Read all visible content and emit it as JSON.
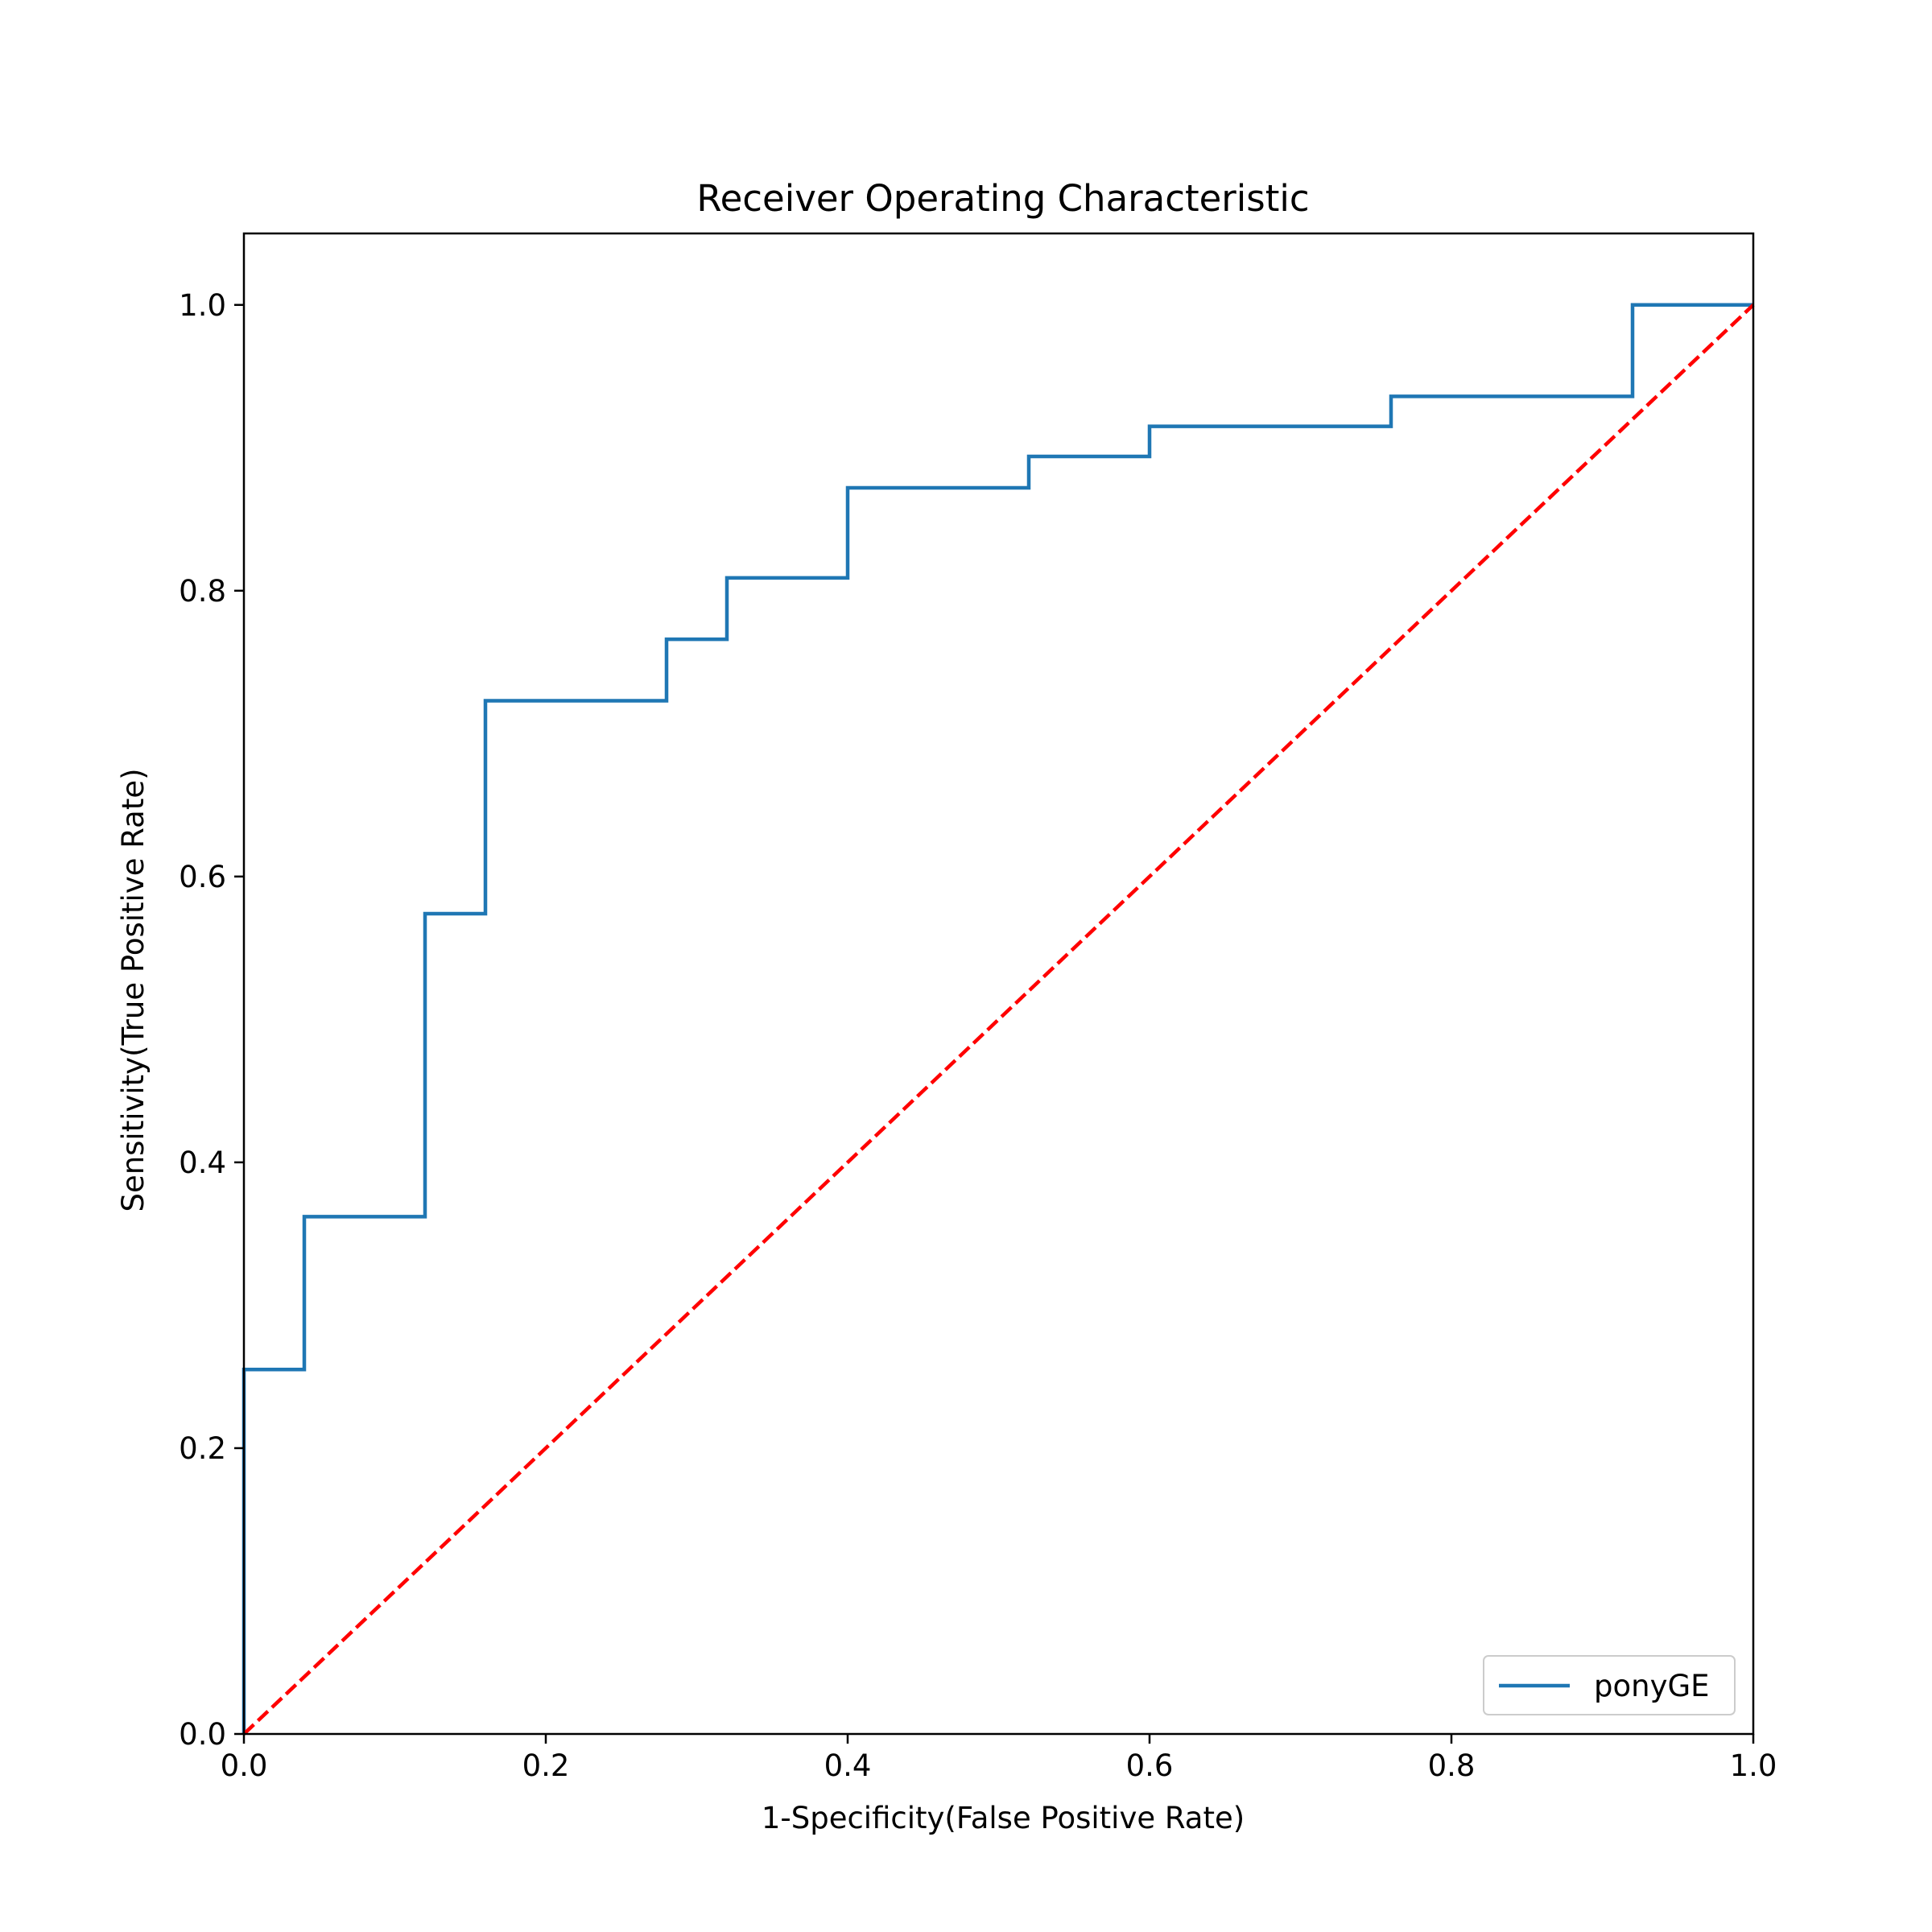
{
  "chart_data": {
    "type": "line",
    "title": "Receiver Operating Characteristic",
    "xlabel": "1-Specificity(False Positive Rate)",
    "ylabel": "Sensitivity(True Positive Rate)",
    "xlim": [
      0.0,
      1.0
    ],
    "ylim": [
      0.0,
      1.05
    ],
    "x_ticks": [
      0.0,
      0.2,
      0.4,
      0.6,
      0.8,
      1.0
    ],
    "y_ticks": [
      0.0,
      0.2,
      0.4,
      0.6,
      0.8,
      1.0
    ],
    "x_tick_labels": [
      "0.0",
      "0.2",
      "0.4",
      "0.6",
      "0.8",
      "1.0"
    ],
    "y_tick_labels": [
      "0.0",
      "0.2",
      "0.4",
      "0.6",
      "0.8",
      "1.0"
    ],
    "grid": false,
    "legend_position": "bottom-right",
    "series": [
      {
        "name": "ponyGE",
        "color": "#1f77b4",
        "style": "solid",
        "step": true,
        "x": [
          0.0,
          0.0,
          0.04,
          0.04,
          0.12,
          0.12,
          0.16,
          0.16,
          0.28,
          0.28,
          0.32,
          0.32,
          0.4,
          0.4,
          0.52,
          0.52,
          0.6,
          0.6,
          0.76,
          0.76,
          0.92,
          0.92,
          1.0
        ],
        "y": [
          0.0,
          0.255,
          0.255,
          0.362,
          0.362,
          0.574,
          0.574,
          0.723,
          0.723,
          0.766,
          0.766,
          0.809,
          0.809,
          0.872,
          0.872,
          0.894,
          0.894,
          0.915,
          0.915,
          0.936,
          0.936,
          1.0,
          1.0
        ]
      },
      {
        "color": "#ff0000",
        "style": "dashed",
        "x": [
          0.0,
          1.0
        ],
        "y": [
          0.0,
          1.0
        ]
      }
    ]
  }
}
